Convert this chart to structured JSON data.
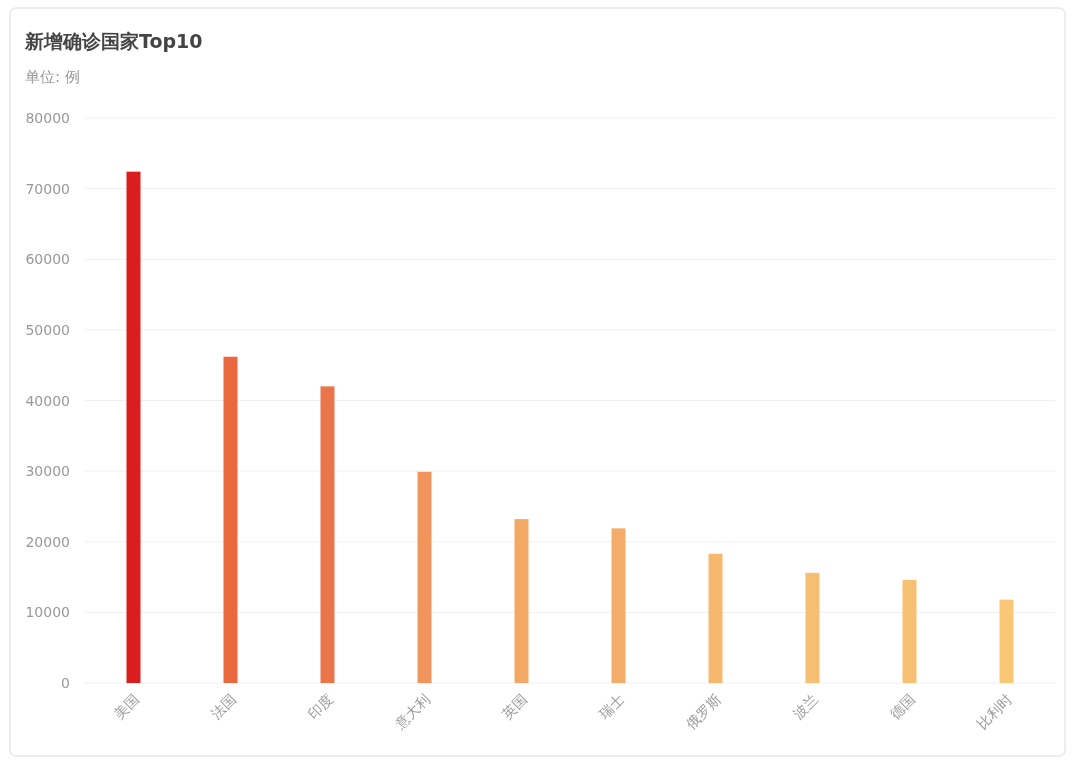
{
  "chart_data": {
    "type": "bar",
    "title": "新增确诊国家Top10",
    "subtitle": "单位: 例",
    "categories": [
      "美国",
      "法国",
      "印度",
      "意大利",
      "英国",
      "瑞士",
      "俄罗斯",
      "波兰",
      "德国",
      "比利时"
    ],
    "values": [
      72400,
      46200,
      42000,
      29900,
      23200,
      21900,
      18300,
      15600,
      14600,
      11800
    ],
    "colors": [
      "#da1d1f",
      "#e9693f",
      "#ea754a",
      "#f0955e",
      "#f3a866",
      "#f4ad68",
      "#f5b86c",
      "#f6be72",
      "#f7c173",
      "#fac777"
    ],
    "ylim": [
      0,
      80000
    ],
    "yticks": [
      0,
      10000,
      20000,
      30000,
      40000,
      50000,
      60000,
      70000,
      80000
    ],
    "grid": "y"
  }
}
